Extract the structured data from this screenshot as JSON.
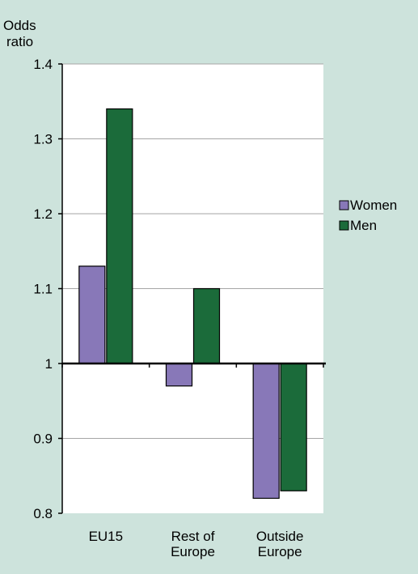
{
  "chart_data": {
    "type": "bar",
    "title": "",
    "ylabel_lines": [
      "Odds",
      "ratio"
    ],
    "xlabel": "",
    "categories": [
      {
        "lines": [
          "EU15"
        ]
      },
      {
        "lines": [
          "Rest of",
          "Europe"
        ]
      },
      {
        "lines": [
          "Outside",
          "Europe"
        ]
      }
    ],
    "series": [
      {
        "name": "Women",
        "color": "#8878b8",
        "values": [
          1.13,
          0.97,
          0.82
        ]
      },
      {
        "name": "Men",
        "color": "#1b6b3a",
        "values": [
          1.34,
          1.1,
          0.83
        ]
      }
    ],
    "baseline": 1,
    "ylim": [
      0.8,
      1.4
    ],
    "yticks": [
      0.8,
      0.9,
      1,
      1.1,
      1.2,
      1.3,
      1.4
    ],
    "ytick_labels": [
      "0.8",
      "0.9",
      "1",
      "1.1",
      "1.2",
      "1.3",
      "1.4"
    ],
    "grid": true,
    "plot_background": "#ffffff",
    "legend_position": "right"
  }
}
